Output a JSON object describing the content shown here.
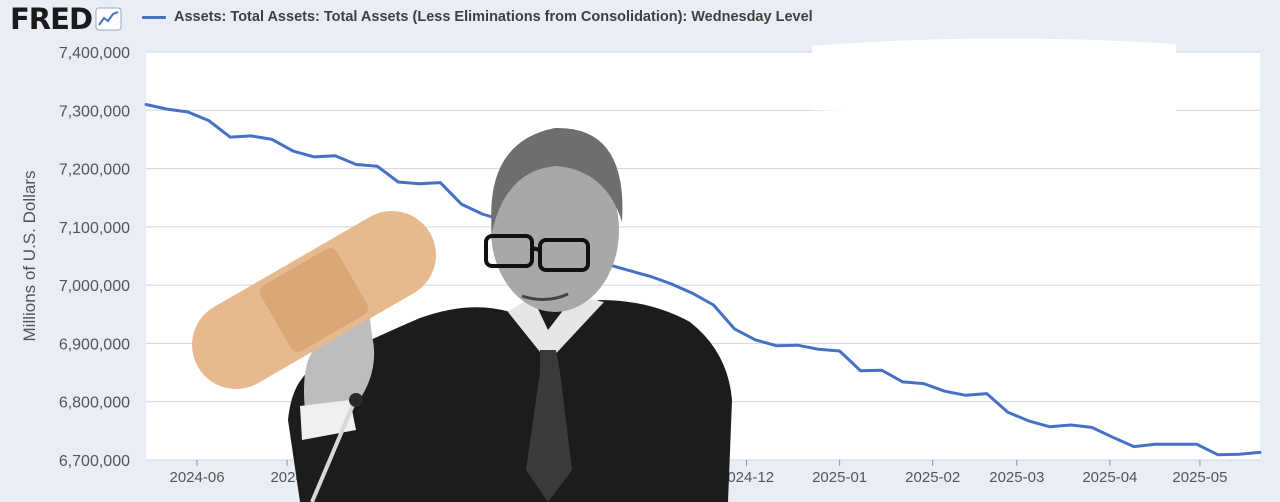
{
  "header": {
    "logo_text": "FRED",
    "logo_icon": "trend-line-icon"
  },
  "chart_data": {
    "type": "line",
    "title": "",
    "xlabel": "",
    "ylabel": "Millions of U.S. Dollars",
    "legend_position": "top-left",
    "grid": true,
    "ylim": [
      6700000,
      7400000
    ],
    "yticks": [
      6700000,
      6800000,
      6900000,
      7000000,
      7100000,
      7200000,
      7300000,
      7400000
    ],
    "ytick_labels": [
      "6,700,000",
      "6,800,000",
      "6,900,000",
      "7,000,000",
      "7,100,000",
      "7,200,000",
      "7,300,000",
      "7,400,000"
    ],
    "xlim": [
      "2024-05-15",
      "2025-05-21"
    ],
    "xticks": [
      "2024-06-01",
      "2024-07-01",
      "2024-12-01",
      "2025-01-01",
      "2025-02-01",
      "2025-03-01",
      "2025-04-01",
      "2025-05-01"
    ],
    "xtick_labels": [
      "2024-06",
      "2024",
      "2024-12",
      "2025-01",
      "2025-02",
      "2025-03",
      "2025-04",
      "2025-05"
    ],
    "series": [
      {
        "name": "Assets: Total Assets: Total Assets (Less Eliminations from Consolidation): Wednesday Level",
        "color": "#4572c4",
        "x": [
          "2024-05-15",
          "2024-05-22",
          "2024-05-29",
          "2024-06-05",
          "2024-06-12",
          "2024-06-19",
          "2024-06-26",
          "2024-07-03",
          "2024-07-10",
          "2024-07-17",
          "2024-07-24",
          "2024-07-31",
          "2024-08-07",
          "2024-08-14",
          "2024-08-21",
          "2024-08-28",
          "2024-09-04",
          "2024-09-11",
          "2024-09-18",
          "2024-09-25",
          "2024-10-02",
          "2024-10-09",
          "2024-10-16",
          "2024-10-23",
          "2024-10-30",
          "2024-11-06",
          "2024-11-13",
          "2024-11-20",
          "2024-11-27",
          "2024-12-04",
          "2024-12-11",
          "2024-12-18",
          "2024-12-25",
          "2025-01-01",
          "2025-01-08",
          "2025-01-15",
          "2025-01-22",
          "2025-01-29",
          "2025-02-05",
          "2025-02-12",
          "2025-02-19",
          "2025-02-26",
          "2025-03-05",
          "2025-03-12",
          "2025-03-19",
          "2025-03-26",
          "2025-04-02",
          "2025-04-09",
          "2025-04-16",
          "2025-04-23",
          "2025-04-30",
          "2025-05-07",
          "2025-05-14",
          "2025-05-21"
        ],
        "y": [
          7310000,
          7302000,
          7297000,
          7282000,
          7254000,
          7256000,
          7250000,
          7230000,
          7220000,
          7222000,
          7207000,
          7204000,
          7177000,
          7174000,
          7176000,
          7139000,
          7122000,
          7111000,
          7092000,
          7070000,
          7055000,
          7045000,
          7035000,
          7025000,
          7015000,
          7002000,
          6986000,
          6966000,
          6925000,
          6906000,
          6896000,
          6897000,
          6890000,
          6887000,
          6853000,
          6854000,
          6834000,
          6831000,
          6818000,
          6811000,
          6814000,
          6782000,
          6767000,
          6757000,
          6760000,
          6756000,
          6739000,
          6723000,
          6727000,
          6727000,
          6727000,
          6709000,
          6710000,
          6713000
        ]
      }
    ]
  }
}
